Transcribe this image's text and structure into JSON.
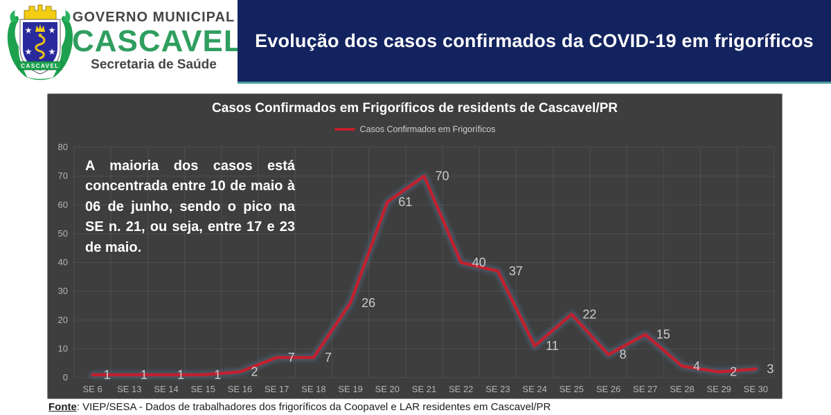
{
  "header": {
    "org_line1": "GOVERNO MUNICIPAL",
    "org_name": "CASCAVEL",
    "org_line2": "Secretaria de Saúde",
    "logo_banner_text": "CASCAVEL",
    "banner_title": "Evolução dos casos confirmados da COVID-19 em frigoríficos",
    "banner_bg": "#13235f",
    "banner_accent": "#4a9e9b"
  },
  "chart": {
    "title": "Casos Confirmados em Frigoríficos de residents de Cascavel/PR",
    "legend_label": "Casos Confirmados em Frigoríficos",
    "annotation": "A maioria dos casos está concentrada entre 10 de maio à 06 de junho, sendo o pico na SE n. 21, ou seja, entre 17 e 23 de maio.",
    "background_color": "#3e3e3e",
    "line_color": "#c0202e",
    "glow_color": "#54718e"
  },
  "chart_data": {
    "type": "line",
    "title": "Casos Confirmados em Frigoríficos de residents de Cascavel/PR",
    "legend": [
      "Casos Confirmados em Frigoríficos"
    ],
    "legend_position": "top",
    "categories": [
      "SE 6",
      "SE 13",
      "SE 14",
      "SE 15",
      "SE 16",
      "SE 17",
      "SE 18",
      "SE 19",
      "SE 20",
      "SE 21",
      "SE 22",
      "SE 23",
      "SE 24",
      "SE 25",
      "SE 26",
      "SE 27",
      "SE 28",
      "SE 29",
      "SE 30"
    ],
    "values": [
      1,
      1,
      1,
      1,
      2,
      7,
      7,
      26,
      61,
      70,
      40,
      37,
      11,
      22,
      8,
      15,
      4,
      2,
      3
    ],
    "xlabel": "",
    "ylabel": "",
    "ylim": [
      0,
      80
    ],
    "yticks": [
      0,
      10,
      20,
      30,
      40,
      50,
      60,
      70,
      80
    ],
    "grid": true,
    "data_labels": true
  },
  "footer": {
    "source_label": "Fonte",
    "source_text": ": VIEP/SESA - Dados de trabalhadores dos frigoríficos da Coopavel e LAR residentes em Cascavel/PR"
  }
}
